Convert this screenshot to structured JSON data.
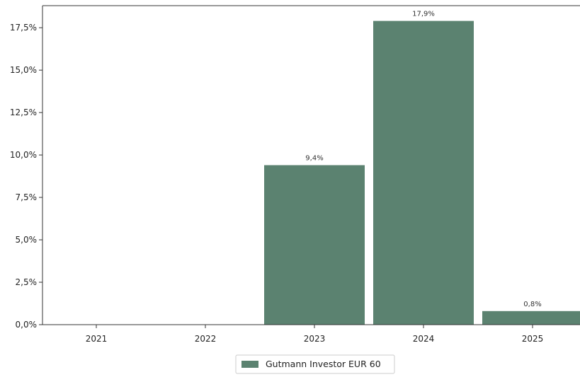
{
  "chart_data": {
    "type": "bar",
    "categories": [
      "2021",
      "2022",
      "2023",
      "2024",
      "2025"
    ],
    "series": [
      {
        "name": "Gutmann Investor EUR 60",
        "values": [
          null,
          null,
          9.4,
          17.9,
          0.8
        ],
        "color": "#5b8270"
      }
    ],
    "data_labels": [
      "",
      "",
      "9,4%",
      "17,9%",
      "0,8%"
    ],
    "y_ticks": [
      0,
      2.5,
      5,
      7.5,
      10,
      12.5,
      15,
      17.5
    ],
    "y_tick_labels": [
      "0,0%",
      "2,5%",
      "5,0%",
      "7,5%",
      "10,0%",
      "12,5%",
      "15,0%",
      "17,5%"
    ],
    "ylim": [
      0,
      18.8
    ],
    "grid": false,
    "legend_position": "bottom-center",
    "title": "",
    "xlabel": "",
    "ylabel": ""
  }
}
